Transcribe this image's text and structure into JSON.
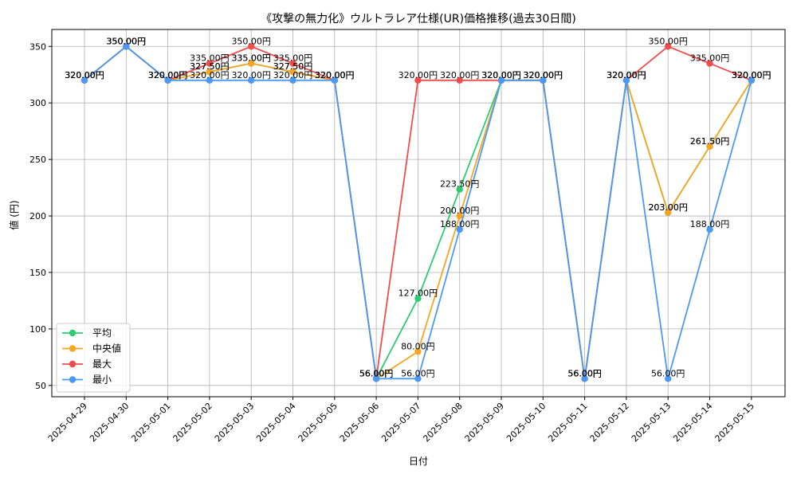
{
  "chart_data": {
    "type": "line",
    "title": "《攻撃の無力化》ウルトラレア仕様(UR)価格推移(過去30日間)",
    "xlabel": "日付",
    "ylabel": "値 (円)",
    "ylim": [
      40,
      365
    ],
    "yticks": [
      50,
      100,
      150,
      200,
      250,
      300,
      350
    ],
    "grid": true,
    "legend_position": "bottom-left",
    "value_suffix": "円",
    "categories": [
      "2025-04-29",
      "2025-04-30",
      "2025-05-01",
      "2025-05-02",
      "2025-05-03",
      "2025-05-04",
      "2025-05-05",
      "2025-05-06",
      "2025-05-07",
      "2025-05-08",
      "2025-05-09",
      "2025-05-10",
      "2025-05-11",
      "2025-05-12",
      "2025-05-13",
      "2025-05-14",
      "2025-05-15"
    ],
    "series": [
      {
        "name": "平均",
        "color": "#2ecc71",
        "values": [
          320,
          350,
          320,
          327.5,
          335,
          327.5,
          320,
          56,
          127,
          223.5,
          320,
          320,
          56,
          320,
          203,
          261.5,
          320
        ]
      },
      {
        "name": "中央値",
        "color": "#f5a623",
        "values": [
          320,
          350,
          320,
          327.5,
          335,
          327.5,
          320,
          56,
          80,
          200,
          320,
          320,
          56,
          320,
          203,
          261.5,
          320
        ]
      },
      {
        "name": "最大",
        "color": "#f04d4d",
        "values": [
          320,
          350,
          320,
          335,
          350,
          335,
          320,
          56,
          320,
          320,
          320,
          320,
          56,
          320,
          350,
          335,
          320
        ]
      },
      {
        "name": "最小",
        "color": "#4a9af5",
        "values": [
          320,
          350,
          320,
          320,
          320,
          320,
          320,
          56,
          56,
          188,
          320,
          320,
          56,
          320,
          56,
          188,
          320
        ]
      }
    ]
  }
}
